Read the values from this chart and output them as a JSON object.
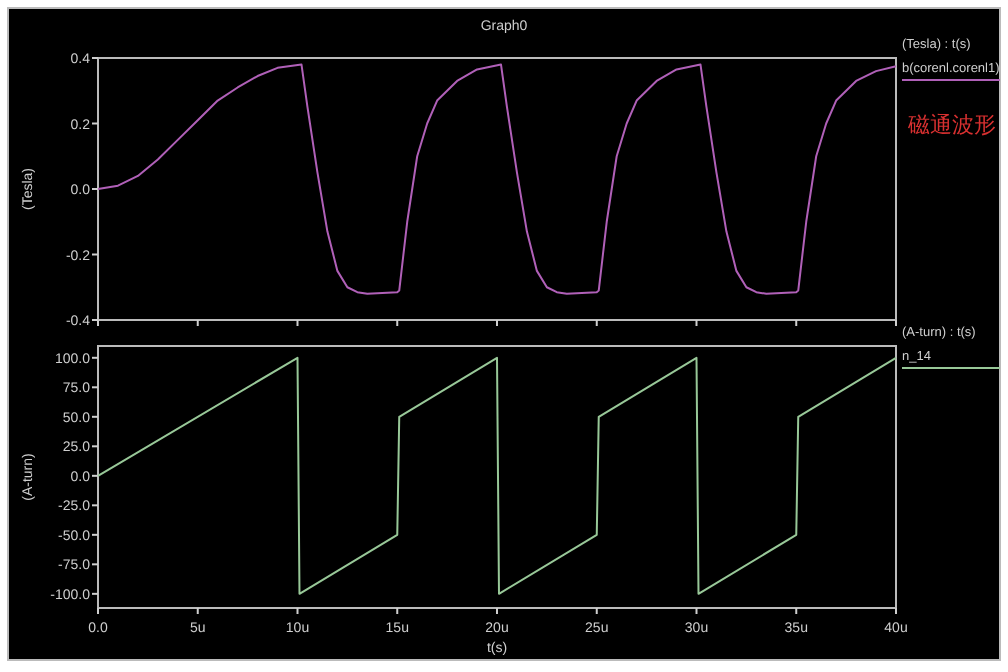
{
  "chart_data": [
    {
      "type": "line",
      "title": "Graph0",
      "ylabel": "(Tesla)",
      "legend_title": "(Tesla) : t(s)",
      "legend": "right",
      "tick_labels": "y",
      "annotations": [
        "磁通波形"
      ],
      "xlim": [
        0,
        40
      ],
      "ylim": [
        -0.4,
        0.4
      ],
      "xticks": [
        {
          "value": 0,
          "label": null
        },
        {
          "value": 5,
          "label": null
        },
        {
          "value": 10,
          "label": null
        },
        {
          "value": 15,
          "label": null
        },
        {
          "value": 20,
          "label": null
        },
        {
          "value": 25,
          "label": null
        },
        {
          "value": 30,
          "label": null
        },
        {
          "value": 35,
          "label": null
        },
        {
          "value": 40,
          "label": null
        }
      ],
      "yticks": [
        {
          "value": 0.4,
          "label": "0.4"
        },
        {
          "value": 0.2,
          "label": "0.2"
        },
        {
          "value": 0,
          "label": "0.0"
        },
        {
          "value": -0.2,
          "label": "-0.2"
        },
        {
          "value": -0.4,
          "label": "-0.4"
        }
      ],
      "series": [
        {
          "name": "b(corenl.corenl1)",
          "color": "#b060b8",
          "x": [
            0,
            1,
            2,
            3,
            4,
            5,
            6,
            7,
            8,
            9,
            10.2,
            10.5,
            11,
            11.5,
            12,
            12.5,
            13,
            13.5,
            15,
            15.1,
            15.5,
            16,
            16.5,
            17,
            18,
            19,
            20.2,
            20.5,
            21,
            21.5,
            22,
            22.5,
            23,
            23.5,
            25,
            25.1,
            25.5,
            26,
            26.5,
            27,
            28,
            29,
            30.2,
            30.5,
            31,
            31.5,
            32,
            32.5,
            33,
            33.5,
            35,
            35.1,
            35.5,
            36,
            36.5,
            37,
            38,
            39,
            40
          ],
          "values": [
            0,
            0.01,
            0.04,
            0.09,
            0.15,
            0.21,
            0.27,
            0.31,
            0.345,
            0.37,
            0.38,
            0.25,
            0.05,
            -0.13,
            -0.25,
            -0.3,
            -0.315,
            -0.32,
            -0.315,
            -0.31,
            -0.1,
            0.1,
            0.2,
            0.27,
            0.33,
            0.365,
            0.38,
            0.25,
            0.05,
            -0.13,
            -0.25,
            -0.3,
            -0.315,
            -0.32,
            -0.315,
            -0.31,
            -0.1,
            0.1,
            0.2,
            0.27,
            0.33,
            0.365,
            0.38,
            0.25,
            0.05,
            -0.13,
            -0.25,
            -0.3,
            -0.315,
            -0.32,
            -0.315,
            -0.31,
            -0.1,
            0.1,
            0.2,
            0.27,
            0.33,
            0.36,
            0.375
          ]
        }
      ]
    },
    {
      "type": "line",
      "xlabel": "t(s)",
      "ylabel": "(A-turn)",
      "legend_title": "(A-turn) : t(s)",
      "legend": "right",
      "xlim": [
        0,
        40
      ],
      "ylim": [
        -112,
        110
      ],
      "xticks": [
        {
          "value": 0,
          "label": "0.0"
        },
        {
          "value": 5,
          "label": "5u"
        },
        {
          "value": 10,
          "label": "10u"
        },
        {
          "value": 15,
          "label": "15u"
        },
        {
          "value": 20,
          "label": "20u"
        },
        {
          "value": 25,
          "label": "25u"
        },
        {
          "value": 30,
          "label": "30u"
        },
        {
          "value": 35,
          "label": "35u"
        },
        {
          "value": 40,
          "label": "40u"
        }
      ],
      "yticks": [
        {
          "value": 100,
          "label": "100.0"
        },
        {
          "value": 75,
          "label": "75.0"
        },
        {
          "value": 50,
          "label": "50.0"
        },
        {
          "value": 25,
          "label": "25.0"
        },
        {
          "value": 0,
          "label": "0.0"
        },
        {
          "value": -25,
          "label": "-25.0"
        },
        {
          "value": -50,
          "label": "-50.0"
        },
        {
          "value": -75,
          "label": "-75.0"
        },
        {
          "value": -100,
          "label": "-100.0"
        }
      ],
      "series": [
        {
          "name": "n_14",
          "color": "#98c898",
          "x": [
            0,
            10,
            10.1,
            15,
            15.1,
            20,
            20.1,
            25,
            25.1,
            30,
            30.1,
            35,
            35.1,
            40
          ],
          "values": [
            0,
            100,
            -100,
            -50,
            50,
            100,
            -100,
            -50,
            50,
            100,
            -100,
            -50,
            50,
            100
          ]
        }
      ]
    }
  ]
}
